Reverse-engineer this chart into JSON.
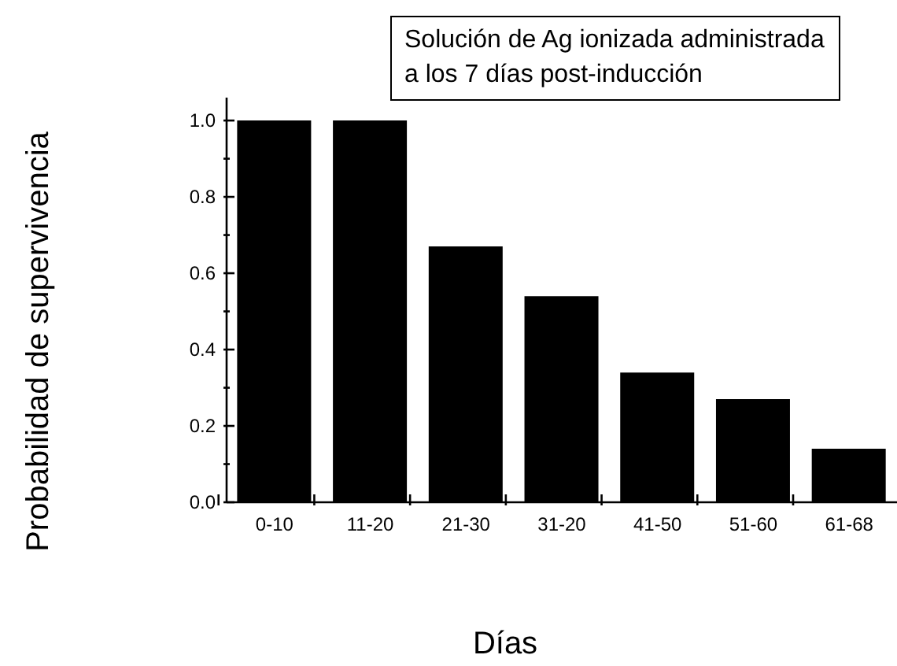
{
  "chart_data": {
    "type": "bar",
    "annotations": [
      "Solución de Ag ionizada administrada\na los 7 días post-inducción"
    ],
    "xlabel": "Días",
    "ylabel": "Probabilidad de supervivencia",
    "categories": [
      "0-10",
      "11-20",
      "21-30",
      "31-20",
      "41-50",
      "51-60",
      "61-68"
    ],
    "values": [
      1.0,
      1.0,
      0.67,
      0.54,
      0.34,
      0.27,
      0.14
    ],
    "color": "#000000",
    "ylim": [
      0,
      1.06
    ],
    "yticks": [
      {
        "value": 0,
        "label": "0.0"
      },
      {
        "value": 0.1,
        "label": null
      },
      {
        "value": 0.2,
        "label": "0.2"
      },
      {
        "value": 0.3,
        "label": null
      },
      {
        "value": 0.4,
        "label": "0.4"
      },
      {
        "value": 0.5,
        "label": null
      },
      {
        "value": 0.6,
        "label": "0.6"
      },
      {
        "value": 0.7,
        "label": null
      },
      {
        "value": 0.8,
        "label": "0.8"
      },
      {
        "value": 0.9,
        "label": null
      },
      {
        "value": 1.0,
        "label": "1.0"
      }
    ],
    "grid": false,
    "legend": false
  }
}
